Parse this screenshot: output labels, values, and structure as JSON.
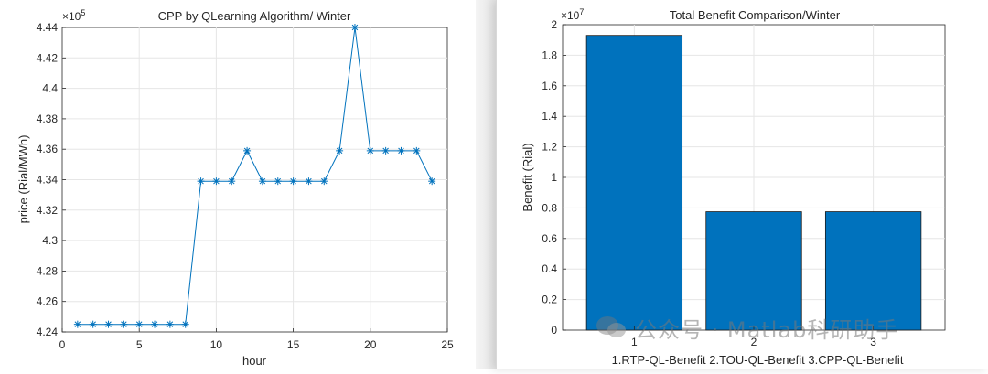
{
  "charts": {
    "left": {
      "title": "CPP by QLearning Algorithm/ Winter",
      "xlabel": "hour",
      "ylabel": "price (Rial/MWh)",
      "exponent_base": "×10",
      "exponent_power": "5",
      "series_color": "#0072bd",
      "xticks": [
        "0",
        "5",
        "10",
        "15",
        "20",
        "25"
      ],
      "yticks": [
        "4.24",
        "4.26",
        "4.28",
        "4.3",
        "4.32",
        "4.34",
        "4.36",
        "4.38",
        "4.4",
        "4.42",
        "4.44"
      ]
    },
    "right": {
      "title": "Total Benefit Comparison/Winter",
      "xlabel": "1.RTP-QL-Benefit 2.TOU-QL-Benefit 3.CPP-QL-Benefit",
      "ylabel": "Benefit (Rial)",
      "exponent_base": "×10",
      "exponent_power": "7",
      "bar_color": "#0072bd",
      "xticks": [
        "1",
        "2",
        "3"
      ],
      "yticks": [
        "0",
        "0.2",
        "0.4",
        "0.6",
        "0.8",
        "1",
        "1.2",
        "1.4",
        "1.6",
        "1.8",
        "2"
      ]
    }
  },
  "chart_data": [
    {
      "type": "line",
      "title": "CPP by QLearning Algorithm/ Winter",
      "xlabel": "hour",
      "ylabel": "price (Rial/MWh)",
      "y_exponent": 5,
      "xlim": [
        0,
        25
      ],
      "ylim": [
        4.24,
        4.44
      ],
      "grid": true,
      "marker": "asterisk",
      "x": [
        1,
        2,
        3,
        4,
        5,
        6,
        7,
        8,
        9,
        10,
        11,
        12,
        13,
        14,
        15,
        16,
        17,
        18,
        19,
        20,
        21,
        22,
        23,
        24
      ],
      "y": [
        4.245,
        4.245,
        4.245,
        4.245,
        4.245,
        4.245,
        4.245,
        4.245,
        4.339,
        4.339,
        4.339,
        4.359,
        4.339,
        4.339,
        4.339,
        4.339,
        4.339,
        4.359,
        4.44,
        4.359,
        4.359,
        4.359,
        4.359,
        4.339
      ]
    },
    {
      "type": "bar",
      "title": "Total Benefit Comparison/Winter",
      "xlabel": "1.RTP-QL-Benefit 2.TOU-QL-Benefit 3.CPP-QL-Benefit",
      "ylabel": "Benefit (Rial)",
      "y_exponent": 7,
      "categories": [
        "1",
        "2",
        "3"
      ],
      "values": [
        1.93,
        0.775,
        0.775
      ],
      "ylim": [
        0,
        2
      ],
      "grid": true
    }
  ],
  "watermark": {
    "text": "公众号 · Matlab科研助手"
  }
}
